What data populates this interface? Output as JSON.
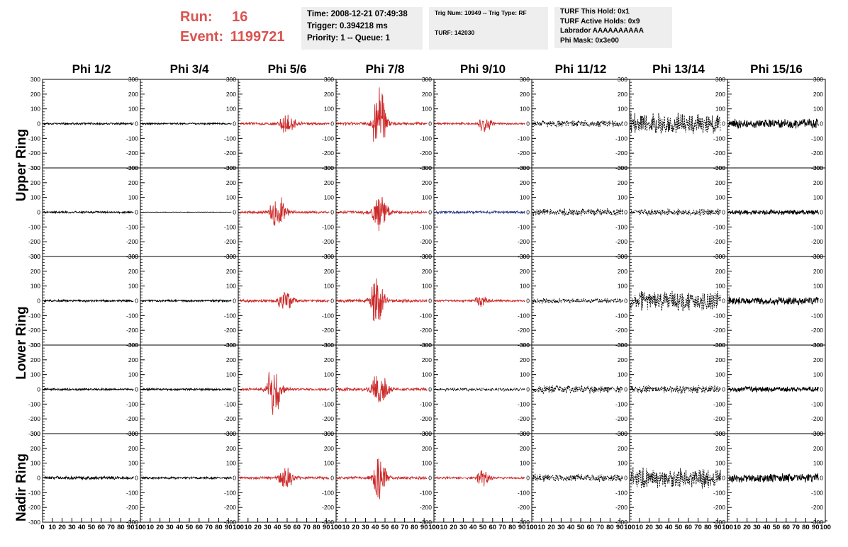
{
  "header": {
    "run_label": "Run:",
    "run_value": "16",
    "event_label": "Event:",
    "event_value": "1199721",
    "box1": [
      "Time: 2008-12-21 07:49:38",
      "Trigger: 0.394218 ms",
      "Priority: 1 -- Queue: 1"
    ],
    "box2": [
      "Trig Num: 10949 -- Trig Type: RF",
      "TURF: 142030"
    ],
    "box3": [
      "TURF This Hold: 0x1",
      "TURF Active Holds: 0x9",
      "Labrador AAAAAAAAAA",
      "Phi Mask: 0x3e00"
    ]
  },
  "colors": {
    "triggered": "#cc2a2a",
    "masked": "#2b3a8c",
    "normal": "#000000",
    "run_text": "#d9534f"
  },
  "chart_data": {
    "type": "line",
    "columns": [
      "Phi 1/2",
      "Phi 3/4",
      "Phi 5/6",
      "Phi 7/8",
      "Phi 9/10",
      "Phi 11/12",
      "Phi 13/14",
      "Phi 15/16"
    ],
    "ring_labels": [
      "Upper Ring",
      "Lower Ring",
      "Nadir Ring"
    ],
    "xlim": [
      0,
      100
    ],
    "ylim": [
      -300,
      300
    ],
    "x_ticks": [
      "0",
      "10",
      "20",
      "30",
      "40",
      "50",
      "60",
      "70",
      "80",
      "90",
      "100"
    ],
    "y_ticks": [
      "300",
      "200",
      "100",
      "0",
      "-100",
      "-200",
      "-300"
    ],
    "panels": [
      [
        {
          "color": "normal",
          "style": "solid",
          "amp": 8,
          "peak": null,
          "width": 0
        },
        {
          "color": "normal",
          "style": "solid",
          "amp": 7,
          "peak": null,
          "width": 0
        },
        {
          "color": "triggered",
          "style": "solid",
          "amp": 10,
          "peak": 85,
          "center": 50,
          "width": 6
        },
        {
          "color": "triggered",
          "style": "solid",
          "amp": 12,
          "peak": 280,
          "center": 44,
          "width": 5
        },
        {
          "color": "triggered",
          "style": "solid",
          "amp": 8,
          "peak": 75,
          "center": 52,
          "width": 5
        },
        {
          "color": "normal",
          "style": "dashed",
          "amp": 25,
          "peak": null,
          "width": 0
        },
        {
          "color": "normal",
          "style": "dashed",
          "amp": 80,
          "peak": null,
          "width": 0
        },
        {
          "color": "normal",
          "style": "solid",
          "amp": 35,
          "peak": null,
          "width": 0
        }
      ],
      [
        {
          "color": "normal",
          "style": "solid",
          "amp": 8,
          "peak": null,
          "width": 0
        },
        {
          "color": "normal",
          "style": "solid",
          "amp": 2,
          "peak": null,
          "width": 0
        },
        {
          "color": "triggered",
          "style": "solid",
          "amp": 10,
          "peak": 140,
          "center": 40,
          "width": 6
        },
        {
          "color": "triggered",
          "style": "solid",
          "amp": 12,
          "peak": 150,
          "center": 44,
          "width": 6
        },
        {
          "color": "masked",
          "style": "solid",
          "amp": 10,
          "peak": null,
          "width": 0
        },
        {
          "color": "normal",
          "style": "dashed",
          "amp": 28,
          "peak": null,
          "width": 0
        },
        {
          "color": "normal",
          "style": "dashed",
          "amp": 25,
          "peak": null,
          "width": 0
        },
        {
          "color": "normal",
          "style": "solid",
          "amp": 20,
          "peak": null,
          "width": 0
        }
      ],
      [
        {
          "color": "normal",
          "style": "solid",
          "amp": 8,
          "peak": null,
          "width": 0
        },
        {
          "color": "normal",
          "style": "solid",
          "amp": 8,
          "peak": null,
          "width": 0
        },
        {
          "color": "triggered",
          "style": "solid",
          "amp": 10,
          "peak": 85,
          "center": 48,
          "width": 6
        },
        {
          "color": "triggered",
          "style": "solid",
          "amp": 12,
          "peak": 230,
          "center": 41,
          "width": 5
        },
        {
          "color": "triggered",
          "style": "solid",
          "amp": 8,
          "peak": 40,
          "center": 48,
          "width": 5
        },
        {
          "color": "normal",
          "style": "dashed",
          "amp": 20,
          "peak": null,
          "width": 0
        },
        {
          "color": "normal",
          "style": "dashed",
          "amp": 75,
          "peak": null,
          "width": 0
        },
        {
          "color": "normal",
          "style": "solid",
          "amp": 30,
          "peak": null,
          "width": 0
        }
      ],
      [
        {
          "color": "normal",
          "style": "solid",
          "amp": 8,
          "peak": null,
          "width": 0
        },
        {
          "color": "normal",
          "style": "solid",
          "amp": 8,
          "peak": null,
          "width": 0
        },
        {
          "color": "triggered",
          "style": "solid",
          "amp": 10,
          "peak": 190,
          "center": 36,
          "width": 6
        },
        {
          "color": "triggered",
          "style": "solid",
          "amp": 12,
          "peak": 130,
          "center": 44,
          "width": 7
        },
        {
          "color": "normal",
          "style": "dashed",
          "amp": 12,
          "peak": null,
          "width": 0
        },
        {
          "color": "normal",
          "style": "dashed",
          "amp": 30,
          "peak": null,
          "width": 0
        },
        {
          "color": "normal",
          "style": "dashed",
          "amp": 30,
          "peak": null,
          "width": 0
        },
        {
          "color": "normal",
          "style": "solid",
          "amp": 20,
          "peak": null,
          "width": 0
        }
      ],
      [
        {
          "color": "normal",
          "style": "solid",
          "amp": 12,
          "peak": null,
          "width": 0
        },
        {
          "color": "normal",
          "style": "solid",
          "amp": 8,
          "peak": null,
          "width": 0
        },
        {
          "color": "triggered",
          "style": "solid",
          "amp": 10,
          "peak": 80,
          "center": 48,
          "width": 6
        },
        {
          "color": "triggered",
          "style": "solid",
          "amp": 12,
          "peak": 200,
          "center": 44,
          "width": 5
        },
        {
          "color": "triggered",
          "style": "solid",
          "amp": 8,
          "peak": 65,
          "center": 50,
          "width": 5
        },
        {
          "color": "normal",
          "style": "dashed",
          "amp": 28,
          "peak": null,
          "width": 0
        },
        {
          "color": "normal",
          "style": "dashed",
          "amp": 75,
          "peak": null,
          "width": 0
        },
        {
          "color": "normal",
          "style": "solid",
          "amp": 35,
          "peak": null,
          "width": 0
        }
      ]
    ]
  }
}
